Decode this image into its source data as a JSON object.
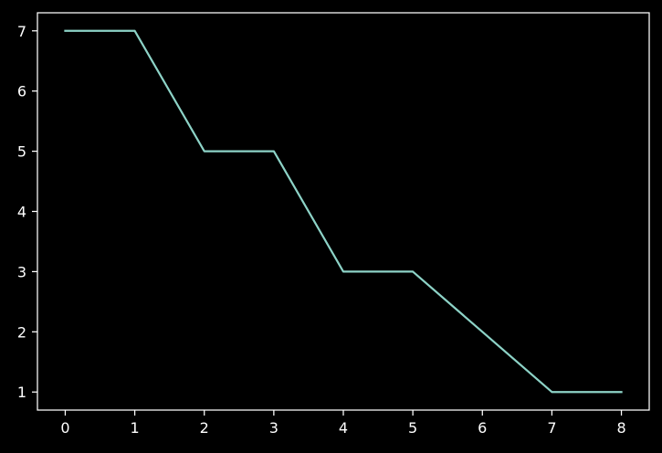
{
  "chart_data": {
    "type": "line",
    "title": "",
    "xlabel": "",
    "ylabel": "",
    "x": [
      0,
      1,
      2,
      3,
      4,
      5,
      6,
      7,
      8
    ],
    "series": [
      {
        "values": [
          7,
          7,
          5,
          5,
          3,
          3,
          2,
          1,
          1
        ],
        "color": "#8dd3c7"
      }
    ],
    "xlim": [
      -0.4,
      8.4
    ],
    "ylim": [
      0.7,
      7.3
    ],
    "xticks": [
      0,
      1,
      2,
      3,
      4,
      5,
      6,
      7,
      8
    ],
    "yticks": [
      1,
      2,
      3,
      4,
      5,
      6,
      7
    ],
    "xtick_labels": [
      "0",
      "1",
      "2",
      "3",
      "4",
      "5",
      "6",
      "7",
      "8"
    ],
    "ytick_labels": [
      "1",
      "2",
      "3",
      "4",
      "5",
      "6",
      "7"
    ],
    "grid": false,
    "legend": "none",
    "background": "#000000",
    "axis_color": "#ffffff"
  }
}
